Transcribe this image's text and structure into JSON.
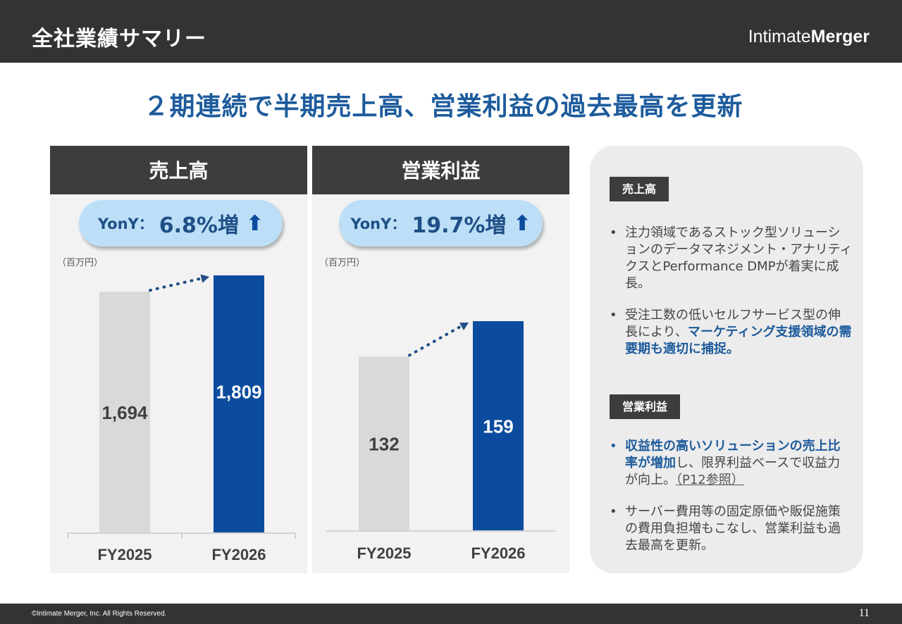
{
  "header": {
    "title": "全社業績サマリー",
    "logo_light": "Intimate",
    "logo_bold": "Merger"
  },
  "headline": "２期連続で半期売上高、営業利益の過去最高を更新",
  "sales": {
    "heading": "売上高",
    "yoy_label": "YonY：",
    "yoy_value": "6.8%増",
    "unit": "（百万円）"
  },
  "profit": {
    "heading": "営業利益",
    "yoy_label": "YonY：",
    "yoy_value": "19.7%増",
    "unit": "（百万円）"
  },
  "chart_data": [
    {
      "type": "bar",
      "categories": [
        "FY2025",
        "FY2026"
      ],
      "values": [
        1694,
        1809
      ],
      "value_labels": [
        "1,694",
        "1,809"
      ],
      "colors": [
        "#d9d9d9",
        "#0c4c9e"
      ],
      "ylim": [
        0,
        1809
      ]
    },
    {
      "type": "bar",
      "categories": [
        "FY2025",
        "FY2026"
      ],
      "values": [
        132,
        159
      ],
      "value_labels": [
        "132",
        "159"
      ],
      "colors": [
        "#d9d9d9",
        "#0c4c9e"
      ],
      "ylim": [
        0,
        159
      ]
    }
  ],
  "side": {
    "sales_tag": "売上高",
    "sales_bullet1": "注力領域であるストック型ソリューションのデータマネジメント・アナリティクスとPerformance DMPが着実に成長。",
    "sales_bullet2_pre": "受注工数の低いセルフサービス型の伸長により、",
    "sales_bullet2_hl": "マーケティング支援領域の需要期も適切に捕捉。",
    "profit_tag": "営業利益",
    "profit_bullet1_hl": "収益性の高いソリューションの売上比率が増加",
    "profit_bullet1_post": "し、限界利益ベースで収益力が向上。",
    "profit_bullet1_ref": "（P12参照）",
    "profit_bullet2": "サーバー費用等の固定原価や販促施策の費用負担増もこなし、営業利益も過去最高を更新。"
  },
  "footer": {
    "copyright": "©Intimate Merger, Inc. All Rights Reserved.",
    "page": "11"
  },
  "icons": {
    "yoy_arrow": "arrow-up-icon"
  }
}
